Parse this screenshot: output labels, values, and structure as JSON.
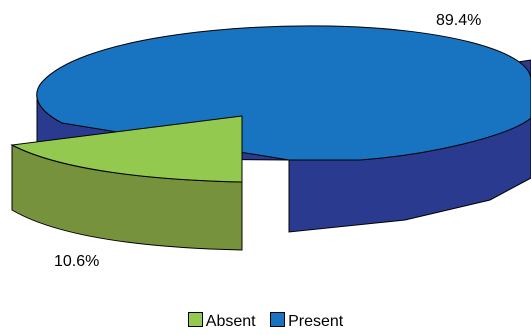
{
  "chart_data": {
    "type": "pie",
    "title": "",
    "slices": [
      {
        "label": "Absent",
        "value": 10.6,
        "display": "10.6%",
        "color": "#92c94e",
        "side_color": "#76923c",
        "exploded": true
      },
      {
        "label": "Present",
        "value": 89.4,
        "display": "89.4%",
        "color": "#1873c1",
        "side_color": "#2a3b8f",
        "exploded": false
      }
    ],
    "three_d": true,
    "legend_position": "bottom"
  }
}
